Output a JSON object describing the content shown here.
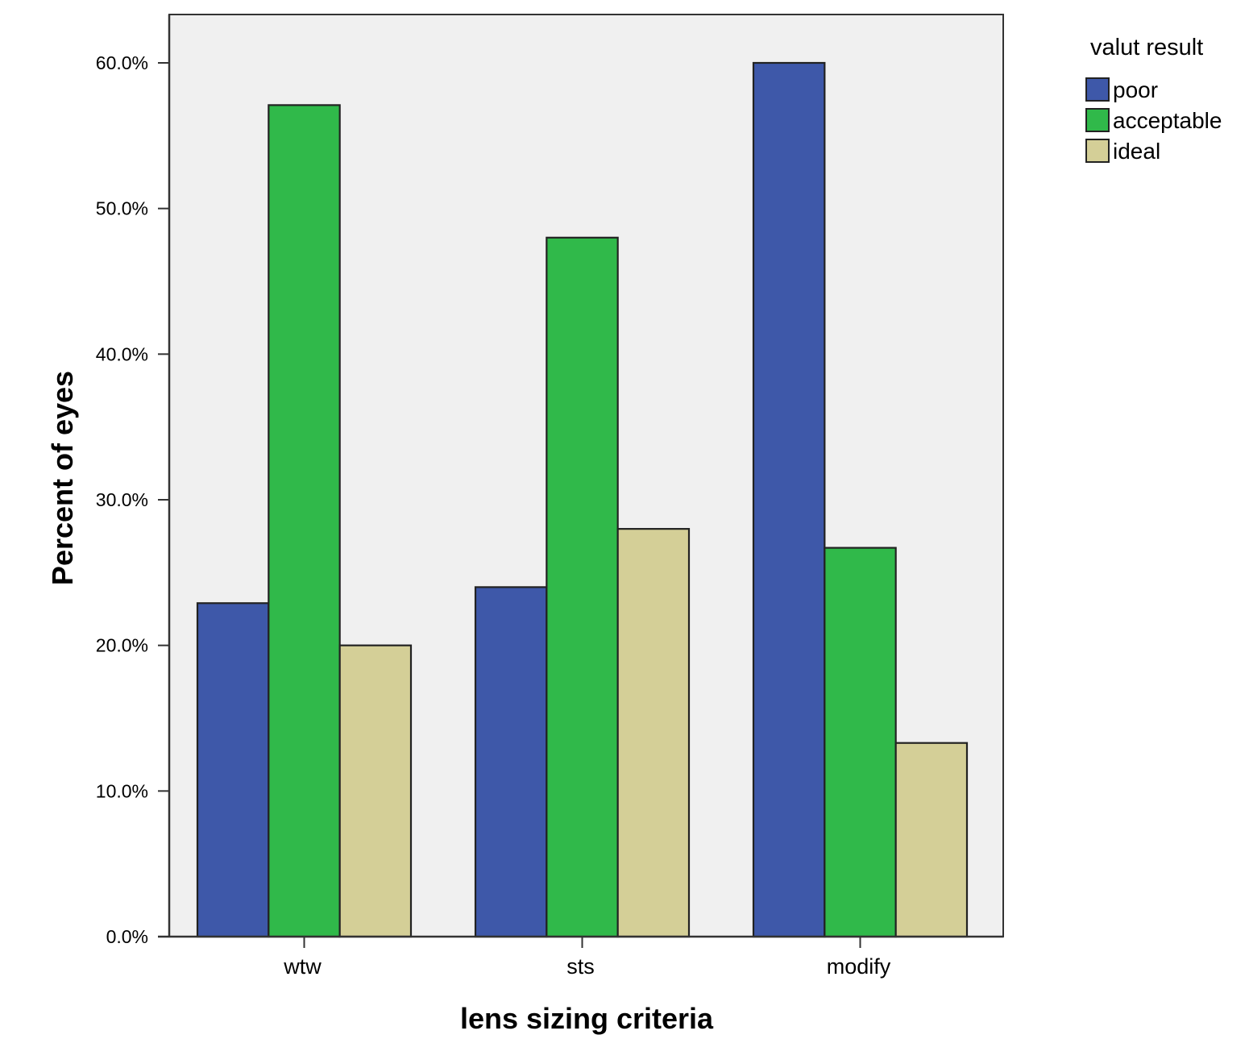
{
  "chart_data": {
    "type": "bar",
    "title": "",
    "xlabel": "lens sizing criteria",
    "ylabel": "Percent of eyes",
    "categories": [
      "wtw",
      "sts",
      "modify"
    ],
    "series": [
      {
        "name": "poor",
        "values": [
          22.9,
          24.0,
          60.0
        ],
        "color": "#3e58a9"
      },
      {
        "name": "acceptable",
        "values": [
          57.1,
          48.0,
          26.7
        ],
        "color": "#30b94a"
      },
      {
        "name": "ideal",
        "values": [
          20.0,
          28.0,
          13.3
        ],
        "color": "#d4cf97"
      }
    ],
    "ylim": [
      0,
      60
    ],
    "yticks": [
      0,
      10,
      20,
      30,
      40,
      50,
      60
    ],
    "ytick_labels": [
      "0.0%",
      "10.0%",
      "20.0%",
      "30.0%",
      "40.0%",
      "50.0%",
      "60.0%"
    ],
    "legend_title": "valut result",
    "legend_position": "top-right outside",
    "grid": false,
    "plot_background": "#f0f0f0"
  }
}
